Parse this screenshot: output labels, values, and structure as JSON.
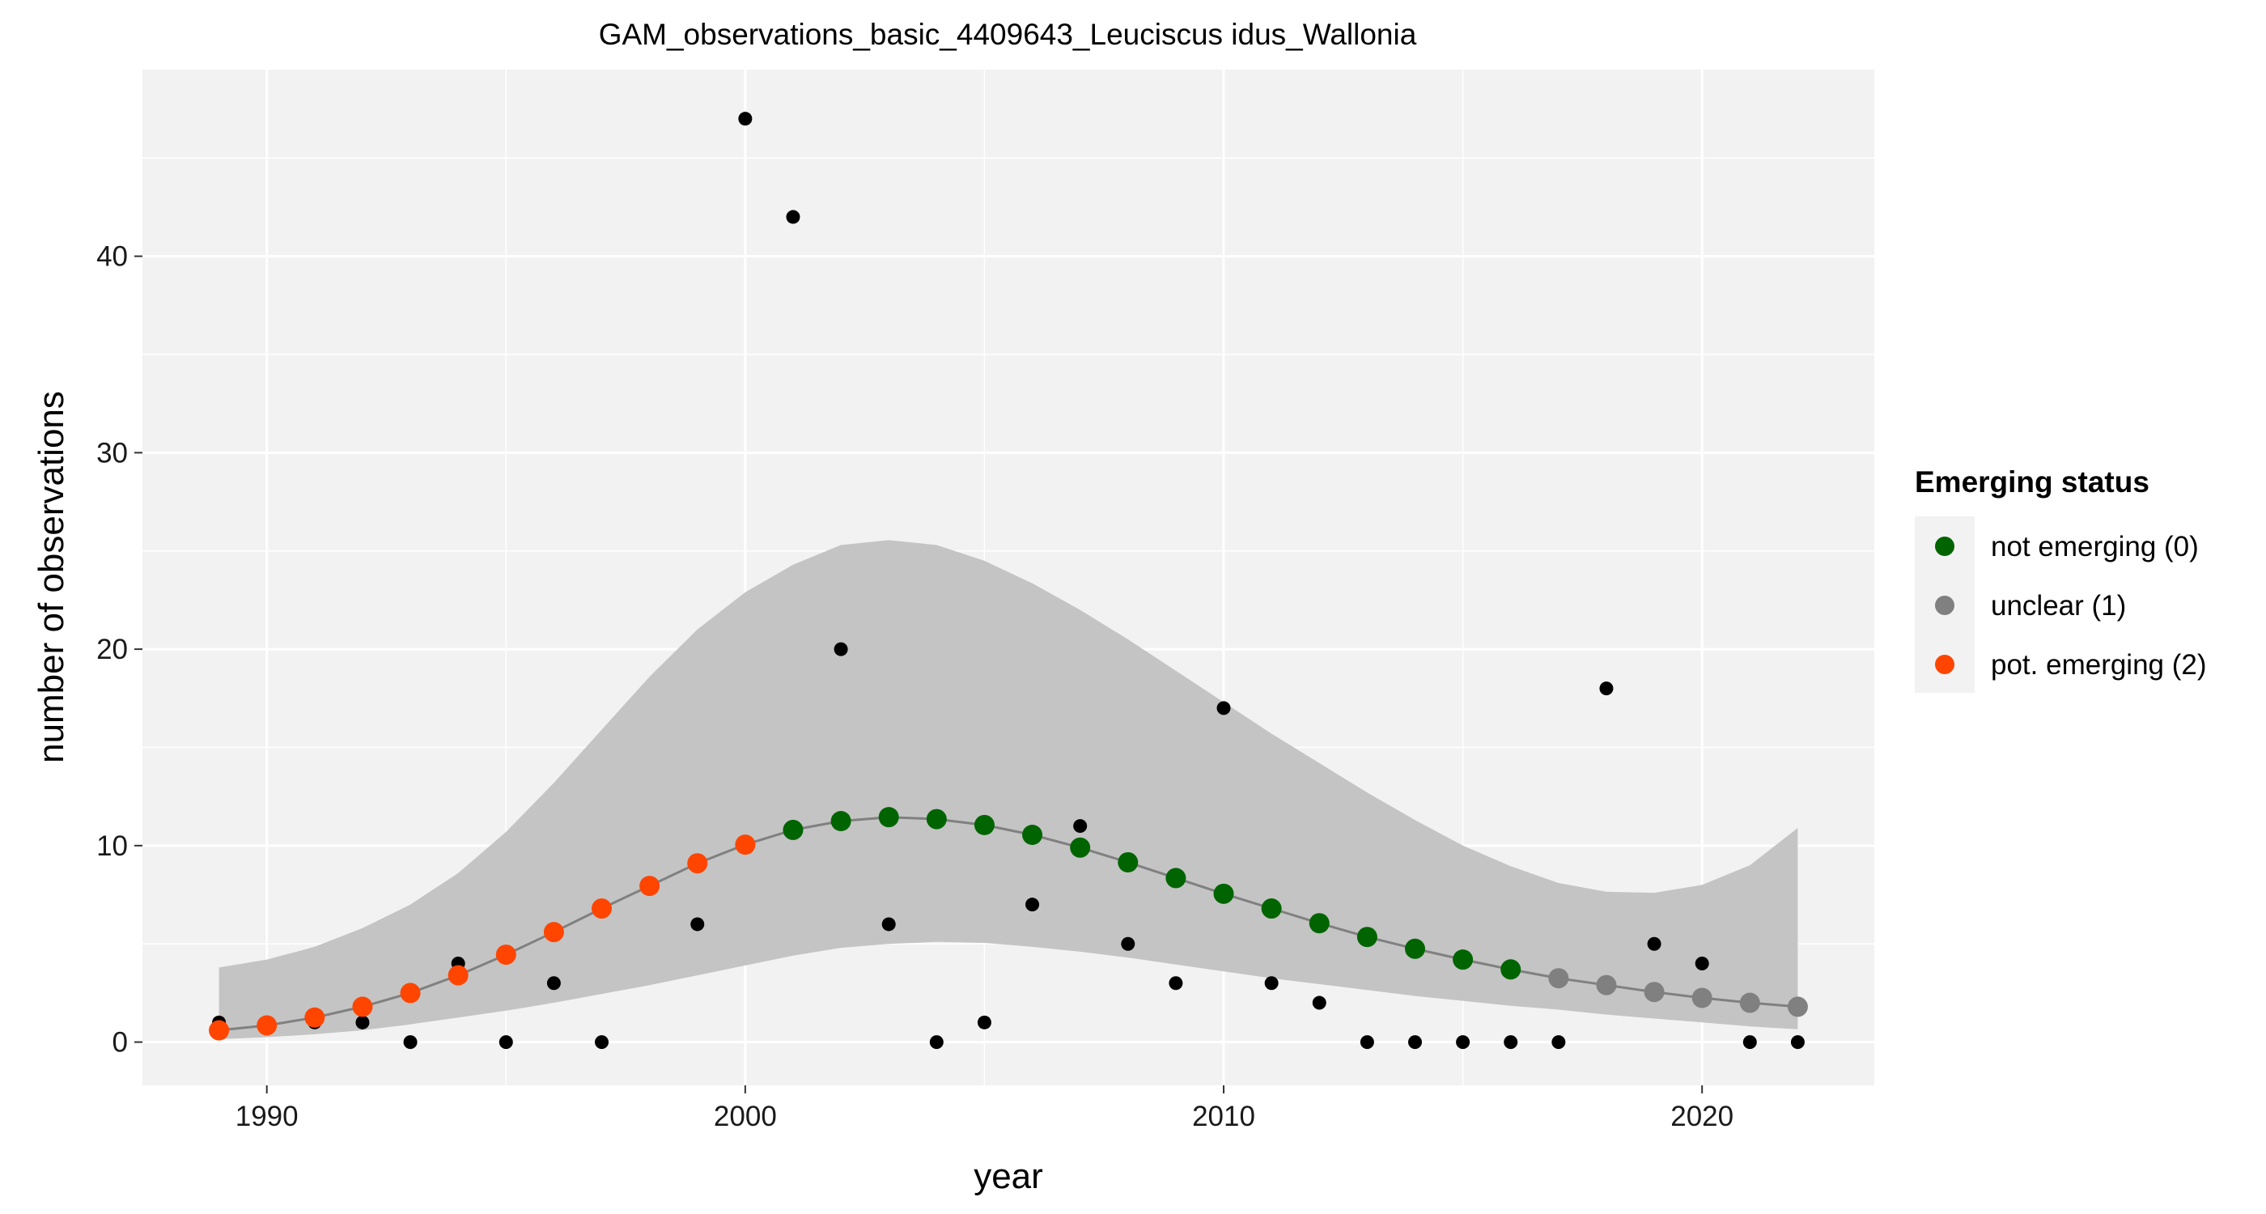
{
  "chart_data": {
    "type": "scatter",
    "title": "GAM_observations_basic_4409643_Leuciscus idus_Wallonia",
    "xlabel": "year",
    "ylabel": "number of observations",
    "xlim": [
      1987.4,
      2023.6
    ],
    "ylim": [
      -2.2,
      49.5
    ],
    "x_ticks": [
      1990,
      2000,
      2010,
      2020
    ],
    "y_ticks": [
      0,
      10,
      20,
      30,
      40
    ],
    "x_tick_labels": [
      "1990",
      "2000",
      "2010",
      "2020"
    ],
    "y_tick_labels": [
      "0",
      "10",
      "20",
      "30",
      "40"
    ],
    "grid": true,
    "observations": {
      "x": [
        1989,
        1990,
        1991,
        1992,
        1993,
        1994,
        1995,
        1996,
        1997,
        1998,
        1999,
        2000,
        2001,
        2002,
        2003,
        2004,
        2005,
        2006,
        2007,
        2008,
        2009,
        2010,
        2011,
        2012,
        2013,
        2014,
        2015,
        2016,
        2017,
        2018,
        2019,
        2020,
        2021,
        2022
      ],
      "y": [
        1,
        1,
        1,
        1,
        0,
        4,
        0,
        3,
        0,
        8,
        6,
        47,
        42,
        20,
        6,
        0,
        1,
        7,
        11,
        5,
        3,
        17,
        3,
        2,
        0,
        0,
        0,
        0,
        0,
        18,
        5,
        4,
        0,
        0
      ]
    },
    "fit": {
      "x": [
        1989,
        1990,
        1991,
        1992,
        1993,
        1994,
        1995,
        1996,
        1997,
        1998,
        1999,
        2000,
        2001,
        2002,
        2003,
        2004,
        2005,
        2006,
        2007,
        2008,
        2009,
        2010,
        2011,
        2012,
        2013,
        2014,
        2015,
        2016,
        2017,
        2018,
        2019,
        2020,
        2021,
        2022
      ],
      "y": [
        0.6,
        0.85,
        1.25,
        1.8,
        2.5,
        3.4,
        4.45,
        5.6,
        6.8,
        7.95,
        9.1,
        10.05,
        10.8,
        11.25,
        11.45,
        11.35,
        11.05,
        10.55,
        9.9,
        9.15,
        8.35,
        7.55,
        6.8,
        6.05,
        5.35,
        4.75,
        4.2,
        3.7,
        3.25,
        2.9,
        2.55,
        2.25,
        2.0,
        1.8
      ],
      "lower": [
        0.15,
        0.25,
        0.4,
        0.6,
        0.9,
        1.25,
        1.6,
        2.0,
        2.45,
        2.9,
        3.4,
        3.9,
        4.4,
        4.8,
        5.0,
        5.1,
        5.05,
        4.85,
        4.6,
        4.3,
        3.95,
        3.6,
        3.25,
        2.95,
        2.65,
        2.35,
        2.1,
        1.85,
        1.65,
        1.4,
        1.2,
        1.0,
        0.8,
        0.65
      ],
      "upper": [
        3.8,
        4.2,
        4.85,
        5.8,
        7.0,
        8.6,
        10.7,
        13.2,
        15.9,
        18.6,
        21.0,
        22.9,
        24.3,
        25.3,
        25.55,
        25.3,
        24.5,
        23.35,
        22.0,
        20.5,
        18.9,
        17.3,
        15.7,
        14.2,
        12.7,
        11.3,
        10.0,
        8.95,
        8.1,
        7.65,
        7.6,
        8.0,
        9.0,
        10.9
      ],
      "status": [
        2,
        2,
        2,
        2,
        2,
        2,
        2,
        2,
        2,
        2,
        2,
        2,
        0,
        0,
        0,
        0,
        0,
        0,
        0,
        0,
        0,
        0,
        0,
        0,
        0,
        0,
        0,
        0,
        1,
        1,
        1,
        1,
        1,
        1
      ]
    },
    "legend": {
      "title": "Emerging status",
      "position": "right",
      "entries": [
        {
          "label": "not emerging (0)",
          "color": "#006400"
        },
        {
          "label": "unclear (1)",
          "color": "#808080"
        },
        {
          "label": "pot. emerging (2)",
          "color": "#ff4500"
        }
      ]
    },
    "colors": {
      "panel": "#f2f2f2",
      "grid": "#ffffff",
      "ribbon": "#c4c4c4",
      "fit_line": "#808080",
      "observation": "#000000"
    }
  }
}
